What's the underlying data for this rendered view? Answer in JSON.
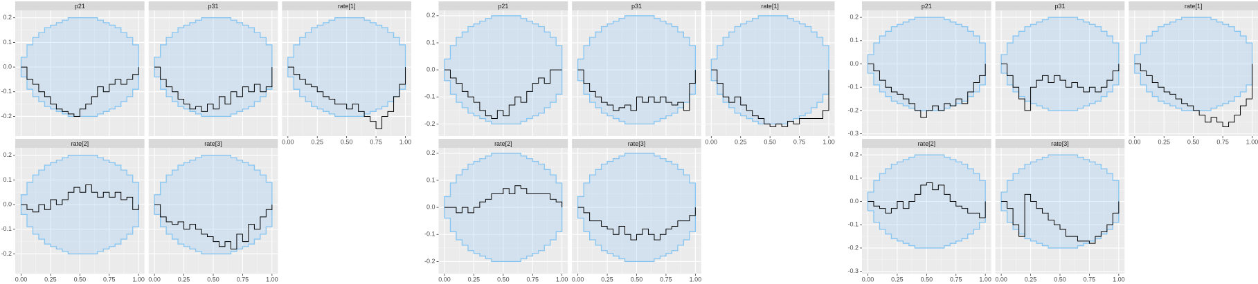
{
  "chart_data": [
    {
      "type": "step",
      "x": [
        0,
        0.05,
        0.1,
        0.15,
        0.2,
        0.25,
        0.3,
        0.35,
        0.4,
        0.45,
        0.5,
        0.55,
        0.6,
        0.65,
        0.7,
        0.75,
        0.8,
        0.85,
        0.9,
        0.95,
        1
      ],
      "xlim": [
        -0.05,
        1.05
      ],
      "xticks": [
        {
          "value": 0,
          "label": "0.00"
        },
        {
          "value": 0.25,
          "label": "0.25"
        },
        {
          "value": 0.5,
          "label": "0.50"
        },
        {
          "value": 0.75,
          "label": "0.75"
        },
        {
          "value": 1,
          "label": "1.00"
        }
      ],
      "ylim": [
        -0.28,
        0.23
      ],
      "yticks": [
        0.2,
        0.1,
        {
          "value": 0,
          "label": "0.0"
        },
        -0.1,
        -0.2
      ],
      "grid": true,
      "line_color": "#000000",
      "envelope_color": "#86c5f2",
      "envelope": {
        "upper": [
          0.04,
          0.09,
          0.12,
          0.14,
          0.16,
          0.17,
          0.18,
          0.19,
          0.2,
          0.2,
          0.2,
          0.2,
          0.2,
          0.19,
          0.18,
          0.17,
          0.16,
          0.14,
          0.12,
          0.09,
          0.04
        ],
        "lower": [
          -0.04,
          -0.09,
          -0.12,
          -0.14,
          -0.16,
          -0.17,
          -0.18,
          -0.19,
          -0.2,
          -0.2,
          -0.2,
          -0.2,
          -0.2,
          -0.19,
          -0.18,
          -0.17,
          -0.16,
          -0.14,
          -0.12,
          -0.09,
          -0.04
        ]
      },
      "panels": [
        {
          "title": "p21",
          "values": [
            0,
            -0.05,
            -0.07,
            -0.1,
            -0.12,
            -0.15,
            -0.17,
            -0.18,
            -0.19,
            -0.2,
            -0.17,
            -0.15,
            -0.12,
            -0.08,
            -0.1,
            -0.07,
            -0.05,
            -0.07,
            -0.05,
            -0.03,
            0
          ]
        },
        {
          "title": "p31",
          "values": [
            0,
            -0.05,
            -0.08,
            -0.1,
            -0.13,
            -0.15,
            -0.17,
            -0.16,
            -0.18,
            -0.15,
            -0.17,
            -0.12,
            -0.15,
            -0.1,
            -0.12,
            -0.08,
            -0.1,
            -0.07,
            -0.1,
            -0.08,
            0
          ]
        },
        {
          "title": "rate[1]",
          "values": [
            0,
            -0.03,
            -0.05,
            -0.07,
            -0.08,
            -0.1,
            -0.12,
            -0.13,
            -0.15,
            -0.15,
            -0.17,
            -0.15,
            -0.18,
            -0.2,
            -0.22,
            -0.25,
            -0.2,
            -0.18,
            -0.12,
            -0.07,
            0
          ]
        },
        {
          "title": "rate[2]",
          "values": [
            0,
            -0.02,
            -0.03,
            0,
            -0.02,
            0.02,
            0,
            0.02,
            0.05,
            0.07,
            0.05,
            0.08,
            0.05,
            0.03,
            0.05,
            0.03,
            0.05,
            0.02,
            0.03,
            -0.02,
            0
          ]
        },
        {
          "title": "rate[3]",
          "values": [
            0,
            -0.05,
            -0.07,
            -0.08,
            -0.07,
            -0.1,
            -0.08,
            -0.1,
            -0.12,
            -0.13,
            -0.15,
            -0.17,
            -0.15,
            -0.18,
            -0.12,
            -0.15,
            -0.08,
            -0.1,
            -0.05,
            -0.02,
            0
          ]
        }
      ]
    },
    {
      "type": "step",
      "x": [
        0,
        0.05,
        0.1,
        0.15,
        0.2,
        0.25,
        0.3,
        0.35,
        0.4,
        0.45,
        0.5,
        0.55,
        0.6,
        0.65,
        0.7,
        0.75,
        0.8,
        0.85,
        0.9,
        0.95,
        1
      ],
      "xlim": [
        -0.05,
        1.05
      ],
      "xticks": [
        {
          "value": 0,
          "label": "0.00"
        },
        {
          "value": 0.25,
          "label": "0.25"
        },
        {
          "value": 0.5,
          "label": "0.50"
        },
        {
          "value": 0.75,
          "label": "0.75"
        },
        {
          "value": 1,
          "label": "1.00"
        }
      ],
      "ylim": [
        -0.245,
        0.22
      ],
      "yticks": [
        0.2,
        0.1,
        {
          "value": 0,
          "label": "0.0"
        },
        -0.1,
        -0.2
      ],
      "grid": true,
      "line_color": "#000000",
      "envelope_color": "#86c5f2",
      "envelope": {
        "upper": [
          0.04,
          0.09,
          0.12,
          0.14,
          0.16,
          0.17,
          0.18,
          0.19,
          0.2,
          0.2,
          0.2,
          0.2,
          0.2,
          0.19,
          0.18,
          0.17,
          0.16,
          0.14,
          0.12,
          0.09,
          0.04
        ],
        "lower": [
          -0.04,
          -0.09,
          -0.12,
          -0.14,
          -0.16,
          -0.17,
          -0.18,
          -0.19,
          -0.2,
          -0.2,
          -0.2,
          -0.2,
          -0.2,
          -0.19,
          -0.18,
          -0.17,
          -0.16,
          -0.14,
          -0.12,
          -0.09,
          -0.04
        ]
      },
      "panels": [
        {
          "title": "p21",
          "values": [
            0,
            -0.03,
            -0.05,
            -0.08,
            -0.1,
            -0.12,
            -0.15,
            -0.17,
            -0.18,
            -0.15,
            -0.17,
            -0.13,
            -0.1,
            -0.12,
            -0.08,
            -0.05,
            -0.03,
            -0.05,
            0,
            0,
            0
          ]
        },
        {
          "title": "p31",
          "values": [
            0,
            -0.05,
            -0.08,
            -0.1,
            -0.12,
            -0.13,
            -0.15,
            -0.14,
            -0.13,
            -0.15,
            -0.1,
            -0.12,
            -0.1,
            -0.12,
            -0.1,
            -0.12,
            -0.13,
            -0.12,
            -0.15,
            -0.05,
            0
          ]
        },
        {
          "title": "rate[1]",
          "values": [
            0,
            -0.05,
            -0.1,
            -0.12,
            -0.1,
            -0.13,
            -0.15,
            -0.17,
            -0.18,
            -0.2,
            -0.21,
            -0.2,
            -0.21,
            -0.19,
            -0.2,
            -0.18,
            -0.18,
            -0.18,
            -0.18,
            -0.15,
            0
          ]
        },
        {
          "title": "rate[2]",
          "values": [
            0,
            0,
            -0.02,
            0,
            -0.02,
            0,
            0.02,
            0.03,
            0.05,
            0.05,
            0.07,
            0.05,
            0.08,
            0.07,
            0.05,
            0.05,
            0.05,
            0.05,
            0.03,
            0.02,
            0
          ]
        },
        {
          "title": "rate[3]",
          "values": [
            0,
            -0.02,
            -0.05,
            -0.05,
            -0.07,
            -0.08,
            -0.1,
            -0.07,
            -0.1,
            -0.12,
            -0.1,
            -0.08,
            -0.1,
            -0.12,
            -0.1,
            -0.08,
            -0.07,
            -0.05,
            -0.05,
            -0.03,
            0
          ]
        }
      ]
    },
    {
      "type": "step",
      "x": [
        0,
        0.05,
        0.1,
        0.15,
        0.2,
        0.25,
        0.3,
        0.35,
        0.4,
        0.45,
        0.5,
        0.55,
        0.6,
        0.65,
        0.7,
        0.75,
        0.8,
        0.85,
        0.9,
        0.95,
        1
      ],
      "xlim": [
        -0.05,
        1.05
      ],
      "xticks": [
        {
          "value": 0,
          "label": "0.00"
        },
        {
          "value": 0.25,
          "label": "0.25"
        },
        {
          "value": 0.5,
          "label": "0.50"
        },
        {
          "value": 0.75,
          "label": "0.75"
        },
        {
          "value": 1,
          "label": "1.00"
        }
      ],
      "ylim": [
        -0.31,
        0.23
      ],
      "yticks": [
        0.2,
        0.1,
        {
          "value": 0,
          "label": "0.0"
        },
        -0.1,
        -0.2,
        -0.3
      ],
      "grid": true,
      "line_color": "#000000",
      "envelope_color": "#86c5f2",
      "envelope": {
        "upper": [
          0.04,
          0.09,
          0.12,
          0.14,
          0.16,
          0.17,
          0.18,
          0.19,
          0.2,
          0.2,
          0.2,
          0.2,
          0.2,
          0.19,
          0.18,
          0.17,
          0.16,
          0.14,
          0.12,
          0.09,
          0.04
        ],
        "lower": [
          -0.04,
          -0.09,
          -0.12,
          -0.14,
          -0.16,
          -0.17,
          -0.18,
          -0.19,
          -0.2,
          -0.2,
          -0.2,
          -0.2,
          -0.2,
          -0.19,
          -0.18,
          -0.17,
          -0.16,
          -0.14,
          -0.12,
          -0.09,
          -0.04
        ]
      },
      "panels": [
        {
          "title": "p21",
          "values": [
            0,
            -0.03,
            -0.07,
            -0.1,
            -0.12,
            -0.13,
            -0.15,
            -0.17,
            -0.2,
            -0.23,
            -0.2,
            -0.18,
            -0.2,
            -0.17,
            -0.18,
            -0.15,
            -0.17,
            -0.12,
            -0.08,
            -0.05,
            0
          ]
        },
        {
          "title": "p31",
          "values": [
            0,
            -0.05,
            -0.1,
            -0.15,
            -0.2,
            -0.1,
            -0.07,
            -0.05,
            -0.08,
            -0.05,
            -0.07,
            -0.1,
            -0.08,
            -0.1,
            -0.12,
            -0.1,
            -0.12,
            -0.1,
            -0.07,
            -0.03,
            0
          ]
        },
        {
          "title": "rate[1]",
          "values": [
            0,
            -0.03,
            -0.05,
            -0.08,
            -0.1,
            -0.12,
            -0.13,
            -0.15,
            -0.17,
            -0.18,
            -0.2,
            -0.22,
            -0.25,
            -0.23,
            -0.25,
            -0.27,
            -0.25,
            -0.22,
            -0.18,
            -0.15,
            0
          ]
        },
        {
          "title": "rate[2]",
          "values": [
            0,
            -0.02,
            -0.03,
            -0.05,
            -0.03,
            0,
            -0.03,
            0,
            0.03,
            0.07,
            0.08,
            0.05,
            0.07,
            0.03,
            0,
            -0.02,
            -0.03,
            -0.05,
            -0.05,
            -0.07,
            0
          ]
        },
        {
          "title": "rate[3]",
          "values": [
            0,
            -0.03,
            -0.1,
            -0.15,
            0.03,
            0,
            -0.03,
            -0.05,
            -0.08,
            -0.1,
            -0.12,
            -0.15,
            -0.15,
            -0.17,
            -0.17,
            -0.18,
            -0.15,
            -0.13,
            -0.1,
            -0.05,
            0
          ]
        }
      ]
    }
  ]
}
